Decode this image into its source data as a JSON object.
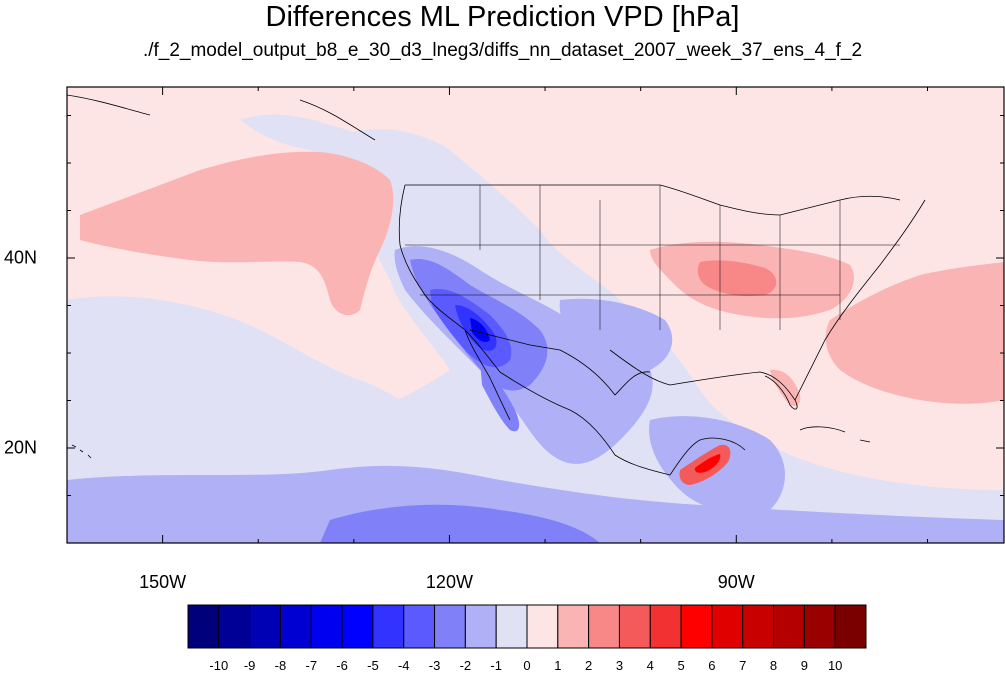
{
  "title": "Differences ML Prediction VPD [hPa]",
  "subtitle": "./f_2_model_output_b8_e_30_d3_lneg3/diffs_nn_dataset_2007_week_37_ens_4_f_2",
  "map": {
    "lon_range": [
      -160,
      -62
    ],
    "lat_range": [
      10,
      58
    ],
    "lon_labels": [
      {
        "lon": -150,
        "text": "150W"
      },
      {
        "lon": -120,
        "text": "120W"
      },
      {
        "lon": -90,
        "text": "90W"
      }
    ],
    "lat_labels": [
      {
        "lat": 40,
        "text": "40N"
      },
      {
        "lat": 20,
        "text": "20N"
      }
    ],
    "background_color": "#fde5e6"
  },
  "colorbar": {
    "colors": [
      "#00007a",
      "#000096",
      "#0000b4",
      "#0000d2",
      "#0000f0",
      "#0000ff",
      "#3333ff",
      "#5a5aff",
      "#8080f8",
      "#b0b0f6",
      "#e1e1f6",
      "#fde5e6",
      "#fab4b4",
      "#f88888",
      "#f45a5a",
      "#f23232",
      "#ff0000",
      "#e00000",
      "#c80000",
      "#b40000",
      "#9a0000",
      "#7a0000"
    ],
    "labels": [
      "-10",
      "-9",
      "-8",
      "-7",
      "-6",
      "-5",
      "-4",
      "-3",
      "-2",
      "-1",
      "0",
      "1",
      "2",
      "3",
      "4",
      "5",
      "6",
      "7",
      "8",
      "9",
      "10"
    ]
  }
}
